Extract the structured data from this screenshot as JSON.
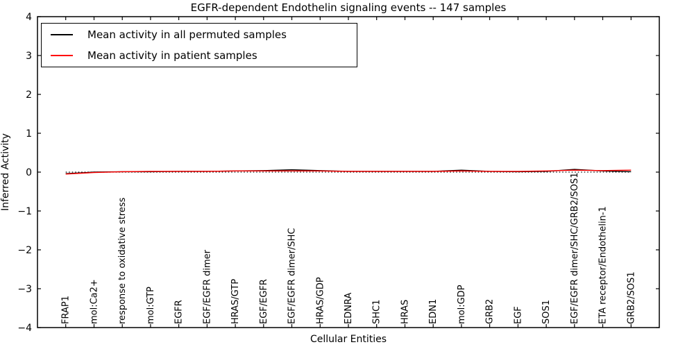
{
  "figure": {
    "title": "EGFR-dependent Endothelin signaling events -- 147 samples",
    "xlabel": "Cellular Entities",
    "ylabel": "Inferred Activity"
  },
  "legend": {
    "entries": [
      {
        "label": "Mean activity in all permuted samples",
        "color": "#000000"
      },
      {
        "label": "Mean activity in patient samples",
        "color": "#ff0000"
      }
    ]
  },
  "chart_data": {
    "type": "line",
    "title": "EGFR-dependent Endothelin signaling events -- 147 samples",
    "xlabel": "Cellular Entities",
    "ylabel": "Inferred Activity",
    "ylim": [
      -4,
      4
    ],
    "yticks": [
      -4,
      -3,
      -2,
      -1,
      0,
      1,
      2,
      3,
      4
    ],
    "grid": false,
    "zero_line": true,
    "zero_line_style": "dotted",
    "legend_position": "upper left",
    "categories": [
      "FRAP1",
      "mol:Ca2+",
      "response to oxidative stress",
      "mol:GTP",
      "EGFR",
      "EGF/EGFR dimer",
      "HRAS/GTP",
      "EGF/EGFR",
      "EGF/EGFR dimer/SHC",
      "HRAS/GDP",
      "EDNRA",
      "SHC1",
      "HRAS",
      "EDN1",
      "mol:GDP",
      "GRB2",
      "EGF",
      "SOS1",
      "EGF/EGFR dimer/SHC/GRB2/SOS1",
      "ETA receptor/Endothelin-1",
      "GRB2/SOS1"
    ],
    "series": [
      {
        "name": "Mean activity in all permuted samples",
        "color": "#000000",
        "values": [
          -0.04,
          0.0,
          0.01,
          0.01,
          0.02,
          0.02,
          0.03,
          0.04,
          0.06,
          0.04,
          0.02,
          0.02,
          0.02,
          0.02,
          0.05,
          0.02,
          0.01,
          0.02,
          0.07,
          0.03,
          0.01
        ]
      },
      {
        "name": "Mean activity in patient samples",
        "color": "#ff0000",
        "values": [
          -0.05,
          -0.01,
          0.01,
          0.02,
          0.02,
          0.02,
          0.03,
          0.03,
          0.03,
          0.03,
          0.02,
          0.02,
          0.02,
          0.02,
          0.03,
          0.02,
          0.02,
          0.03,
          0.05,
          0.04,
          0.05
        ]
      }
    ]
  }
}
